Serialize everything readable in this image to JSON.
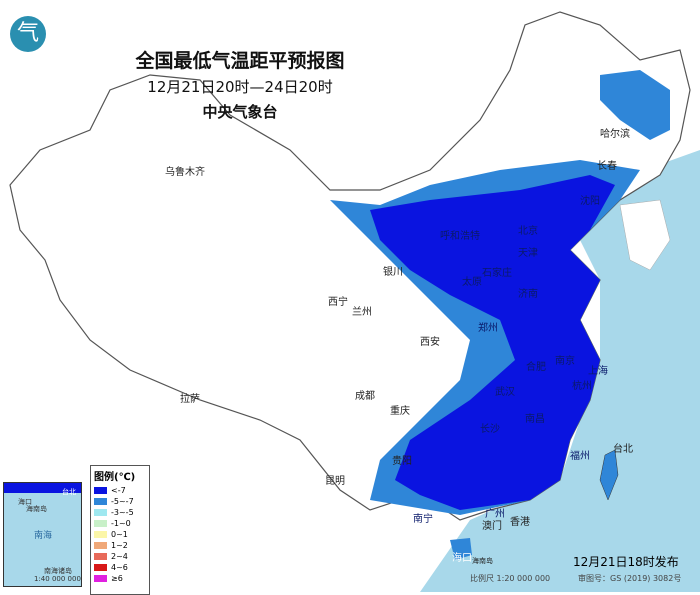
{
  "title": "全国最低气温距平预报图",
  "period": "12月21日20时—24日20时",
  "issuer": "中央气象台",
  "legend": {
    "title": "图例(℃)",
    "items": [
      {
        "label": "<-7",
        "color": "#0a14e0"
      },
      {
        "label": "-5~-7",
        "color": "#2f86d8"
      },
      {
        "label": "-3~-5",
        "color": "#9fe8f0"
      },
      {
        "label": "-1~0",
        "color": "#c8f0c8"
      },
      {
        "label": "0~1",
        "color": "#fbf6a8"
      },
      {
        "label": "1~2",
        "color": "#f0a878"
      },
      {
        "label": "2~4",
        "color": "#e86a5a"
      },
      {
        "label": "4~6",
        "color": "#d81818"
      },
      {
        "label": "≥6",
        "color": "#e020e0"
      }
    ]
  },
  "inset": {
    "labels": [
      "海口",
      "海南岛",
      "南海",
      "台北",
      "南海诸岛",
      "1:40 000 000"
    ]
  },
  "cities": [
    "乌鲁木齐",
    "哈尔滨",
    "长春",
    "沈阳",
    "北京",
    "天津",
    "呼和浩特",
    "石家庄",
    "太原",
    "济南",
    "郑州",
    "银川",
    "西宁",
    "兰州",
    "西安",
    "拉萨",
    "成都",
    "重庆",
    "武汉",
    "合肥",
    "南京",
    "上海",
    "杭州",
    "长沙",
    "南昌",
    "福州",
    "贵阳",
    "昆明",
    "南宁",
    "广州",
    "澳门",
    "香港",
    "台北",
    "海口",
    "海南岛"
  ],
  "publish_time": "12月21日18时发布",
  "scale": "比例尺 1:20 000 000",
  "review_no": "审图号：GS (2019) 3082号",
  "colors": {
    "sea": "#a8d8ea",
    "land": "#ffffff"
  }
}
